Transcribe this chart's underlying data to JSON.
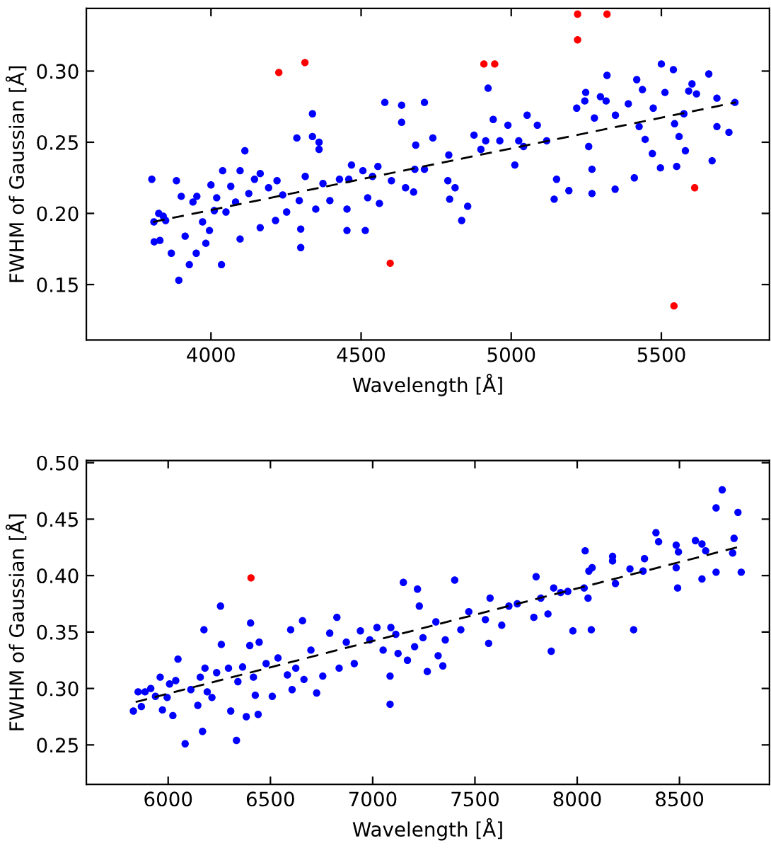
{
  "chart_data": [
    {
      "type": "scatter",
      "xlabel": "Wavelength [Å]",
      "ylabel": "FWHM of Gaussian [Å]",
      "xlim": [
        3585,
        5860
      ],
      "ylim": [
        0.111,
        0.344
      ],
      "xticks": [
        4000,
        4500,
        5000,
        5500
      ],
      "yticks": [
        {
          "value": 0.15,
          "label": "0.15"
        },
        {
          "value": 0.2,
          "label": "0.20"
        },
        {
          "value": 0.25,
          "label": "0.25"
        },
        {
          "value": 0.3,
          "label": "0.30"
        }
      ],
      "grid": false,
      "legend": false,
      "marker": "circle",
      "series": [
        {
          "color": "#0000ff",
          "x": [
            3803,
            3810,
            3811,
            3826,
            3830,
            3841,
            3849,
            3868,
            3885,
            3893,
            3901,
            3914,
            3928,
            3940,
            3951,
            3953,
            3972,
            3983,
            3995,
            4000,
            4011,
            4019,
            4035,
            4039,
            4050,
            4066,
            4082,
            4097,
            4097,
            4113,
            4126,
            4145,
            4164,
            4164,
            4192,
            4215,
            4220,
            4239,
            4252,
            4286,
            4294,
            4299,
            4299,
            4314,
            4338,
            4338,
            4349,
            4360,
            4360,
            4373,
            4396,
            4428,
            4453,
            4453,
            4468,
            4506,
            4514,
            4522,
            4556,
            4561,
            4579,
            4601,
            4635,
            4635,
            4648,
            4675,
            4682,
            4711,
            4711,
            4739,
            4789,
            4792,
            4795,
            4813,
            4835,
            4855,
            4876,
            4899,
            4923,
            4940,
            4962,
            4989,
            5012,
            5041,
            5053,
            5087,
            5118,
            5143,
            5151,
            5192,
            5218,
            5245,
            5248,
            5258,
            5269,
            5269,
            5277,
            5297,
            5316,
            5319,
            5346,
            5347,
            5390,
            5410,
            5418,
            5426,
            5437,
            5446,
            5470,
            5473,
            5497,
            5500,
            5512,
            5540,
            5544,
            5551,
            5559,
            5575,
            5580,
            5591,
            5602,
            5617,
            5658,
            5669,
            5685,
            5685,
            5725,
            5745,
            4459,
            4538,
            4679,
            4915,
            5025
          ],
          "values": [
            0.224,
            0.194,
            0.18,
            0.2,
            0.181,
            0.198,
            0.195,
            0.172,
            0.223,
            0.153,
            0.212,
            0.184,
            0.164,
            0.208,
            0.172,
            0.212,
            0.194,
            0.179,
            0.188,
            0.22,
            0.202,
            0.211,
            0.164,
            0.23,
            0.201,
            0.219,
            0.208,
            0.182,
            0.23,
            0.244,
            0.214,
            0.224,
            0.19,
            0.228,
            0.218,
            0.195,
            0.223,
            0.213,
            0.201,
            0.253,
            0.209,
            0.189,
            0.176,
            0.226,
            0.27,
            0.254,
            0.203,
            0.25,
            0.245,
            0.221,
            0.209,
            0.224,
            0.188,
            0.203,
            0.234,
            0.23,
            0.188,
            0.211,
            0.233,
            0.207,
            0.278,
            0.223,
            0.276,
            0.264,
            0.218,
            0.215,
            0.248,
            0.278,
            0.231,
            0.253,
            0.223,
            0.241,
            0.21,
            0.218,
            0.195,
            0.205,
            0.255,
            0.245,
            0.288,
            0.266,
            0.251,
            0.262,
            0.234,
            0.247,
            0.269,
            0.262,
            0.251,
            0.21,
            0.224,
            0.216,
            0.274,
            0.279,
            0.285,
            0.247,
            0.231,
            0.214,
            0.267,
            0.282,
            0.279,
            0.297,
            0.217,
            0.269,
            0.277,
            0.225,
            0.294,
            0.261,
            0.287,
            0.252,
            0.242,
            0.274,
            0.232,
            0.305,
            0.285,
            0.301,
            0.263,
            0.233,
            0.254,
            0.27,
            0.244,
            0.286,
            0.291,
            0.284,
            0.298,
            0.237,
            0.281,
            0.261,
            0.257,
            0.278,
            0.224,
            0.226,
            0.231,
            0.251,
            0.251
          ]
        },
        {
          "color": "#ff0000",
          "x": [
            4226,
            4313,
            4909,
            4945,
            5221,
            5221,
            5319,
            5611,
            4597,
            5542
          ],
          "values": [
            0.299,
            0.306,
            0.305,
            0.305,
            0.34,
            0.322,
            0.34,
            0.218,
            0.165,
            0.135
          ]
        },
        {
          "type": "line",
          "color": "#000000",
          "line_style": "dashed",
          "marker": "none",
          "x": [
            3807,
            5748
          ],
          "values": [
            0.194,
            0.278
          ]
        }
      ]
    },
    {
      "type": "scatter",
      "xlabel": "Wavelength [Å]",
      "ylabel": "FWHM of Gaussian [Å]",
      "xlim": [
        5600,
        8940
      ],
      "ylim": [
        0.215,
        0.502
      ],
      "xticks": [
        6000,
        6500,
        7000,
        7500,
        8000,
        8500
      ],
      "yticks": [
        {
          "value": 0.25,
          "label": "0.25"
        },
        {
          "value": 0.3,
          "label": "0.30"
        },
        {
          "value": 0.35,
          "label": "0.35"
        },
        {
          "value": 0.4,
          "label": "0.40"
        },
        {
          "value": 0.45,
          "label": "0.45"
        },
        {
          "value": 0.5,
          "label": "0.50"
        }
      ],
      "grid": false,
      "legend": false,
      "marker": "circle",
      "series": [
        {
          "color": "#0000ff",
          "x": [
            5830,
            5853,
            5869,
            5887,
            5915,
            5938,
            5961,
            5972,
            5995,
            6007,
            6023,
            6037,
            6048,
            6083,
            6111,
            6145,
            6157,
            6168,
            6175,
            6180,
            6191,
            6214,
            6237,
            6256,
            6260,
            6295,
            6306,
            6334,
            6341,
            6364,
            6382,
            6399,
            6403,
            6417,
            6426,
            6440,
            6445,
            6479,
            6509,
            6537,
            6583,
            6599,
            6606,
            6624,
            6657,
            6664,
            6698,
            6726,
            6756,
            6790,
            6825,
            6836,
            6871,
            6910,
            6940,
            6986,
            7021,
            7051,
            7085,
            7085,
            7089,
            7113,
            7124,
            7150,
            7170,
            7205,
            7219,
            7228,
            7246,
            7267,
            7309,
            7320,
            7343,
            7355,
            7401,
            7431,
            7470,
            7551,
            7567,
            7574,
            7631,
            7666,
            7707,
            7788,
            7799,
            7822,
            7857,
            7873,
            7885,
            7919,
            7954,
            7979,
            8034,
            8039,
            8053,
            8057,
            8069,
            8073,
            8173,
            8173,
            8187,
            8258,
            8276,
            8322,
            8329,
            8385,
            8398,
            8484,
            8484,
            8491,
            8495,
            8578,
            8610,
            8610,
            8628,
            8679,
            8679,
            8709,
            8760,
            8767,
            8786,
            8802
          ],
          "values": [
            0.28,
            0.297,
            0.284,
            0.297,
            0.3,
            0.293,
            0.31,
            0.281,
            0.292,
            0.304,
            0.276,
            0.307,
            0.326,
            0.251,
            0.299,
            0.285,
            0.31,
            0.262,
            0.352,
            0.318,
            0.297,
            0.292,
            0.314,
            0.373,
            0.339,
            0.318,
            0.28,
            0.254,
            0.306,
            0.319,
            0.275,
            0.338,
            0.358,
            0.31,
            0.294,
            0.277,
            0.341,
            0.322,
            0.293,
            0.327,
            0.312,
            0.352,
            0.299,
            0.318,
            0.36,
            0.308,
            0.334,
            0.296,
            0.311,
            0.349,
            0.363,
            0.318,
            0.341,
            0.322,
            0.351,
            0.343,
            0.354,
            0.334,
            0.286,
            0.311,
            0.354,
            0.348,
            0.331,
            0.394,
            0.325,
            0.337,
            0.388,
            0.373,
            0.345,
            0.315,
            0.359,
            0.329,
            0.32,
            0.343,
            0.396,
            0.352,
            0.368,
            0.361,
            0.34,
            0.38,
            0.356,
            0.373,
            0.375,
            0.363,
            0.399,
            0.38,
            0.366,
            0.333,
            0.389,
            0.385,
            0.386,
            0.351,
            0.389,
            0.422,
            0.38,
            0.404,
            0.352,
            0.407,
            0.417,
            0.413,
            0.393,
            0.406,
            0.352,
            0.404,
            0.415,
            0.438,
            0.43,
            0.427,
            0.407,
            0.389,
            0.421,
            0.431,
            0.428,
            0.397,
            0.422,
            0.46,
            0.403,
            0.476,
            0.42,
            0.433,
            0.456,
            0.403
          ]
        },
        {
          "color": "#ff0000",
          "x": [
            6405
          ],
          "values": [
            0.398
          ]
        },
        {
          "type": "line",
          "color": "#000000",
          "line_style": "dashed",
          "marker": "none",
          "x": [
            5841,
            8802
          ],
          "values": [
            0.288,
            0.426
          ]
        }
      ]
    }
  ]
}
